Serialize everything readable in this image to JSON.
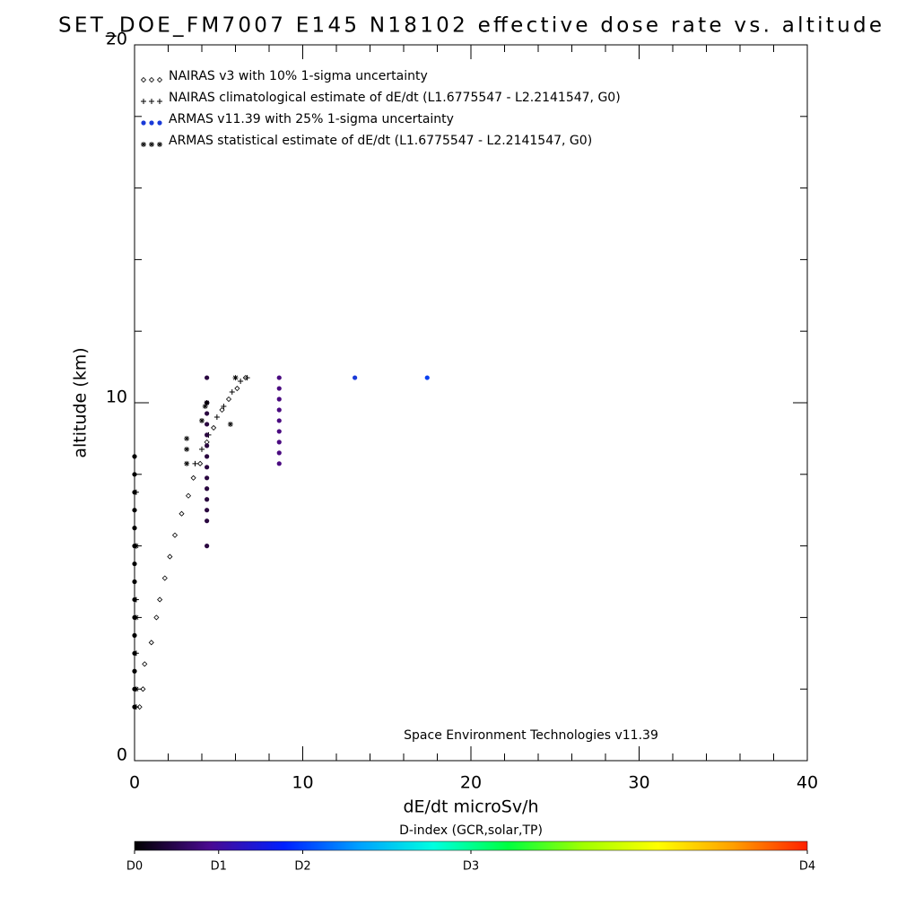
{
  "chart_data": {
    "type": "scatter",
    "title": "SET_DOE_FM7007  E145 N18102 effective dose rate vs. altitude",
    "x_label": "dE/dt microSv/h",
    "y_label": "altitude (km)",
    "annotation": "Space Environment Technologies v11.39",
    "xlim": [
      0,
      40
    ],
    "ylim": [
      0,
      20
    ],
    "xticks": [
      0,
      10,
      20,
      30,
      40
    ],
    "yticks": [
      0,
      10,
      20
    ],
    "xminorticks": [
      2,
      4,
      6,
      8,
      12,
      14,
      16,
      18,
      22,
      24,
      26,
      28,
      32,
      34,
      36,
      38
    ],
    "yminorticks": [
      2,
      4,
      6,
      8,
      12,
      14,
      16,
      18
    ],
    "series": [
      {
        "name": "NAIRAS v3 with 10% 1-sigma uncertainty",
        "marker": "diamond",
        "color": "#000000",
        "x": [
          0.3,
          0.5,
          0.6,
          1.0,
          1.3,
          1.5,
          1.8,
          2.1,
          2.4,
          2.8,
          3.2,
          3.5,
          3.9,
          4.3,
          4.7,
          5.2,
          5.6,
          6.1,
          6.6
        ],
        "values": [
          1.5,
          2.0,
          2.7,
          3.3,
          4.0,
          4.5,
          5.1,
          5.7,
          6.3,
          6.9,
          7.4,
          7.9,
          8.3,
          8.9,
          9.3,
          9.8,
          10.1,
          10.4,
          10.7
        ]
      },
      {
        "name": "NAIRAS climatological estimate of dE/dt (L1.6775547 - L2.2141547, G0)",
        "marker": "plus",
        "color": "#000000",
        "x": [
          0.1,
          0.1,
          0.1,
          0.1,
          0.1,
          3.6,
          4.0,
          4.4,
          4.9,
          5.3,
          5.8,
          6.3,
          6.7
        ],
        "values": [
          1.5,
          3.0,
          4.5,
          6.0,
          7.5,
          8.3,
          8.7,
          9.1,
          9.6,
          9.9,
          10.3,
          10.6,
          10.7
        ]
      },
      {
        "name": "ARMAS v11.39 with 25% 1-sigma uncertainty",
        "marker": "dot",
        "color": "#1a3ad8",
        "x": [
          0,
          0,
          0,
          0,
          0,
          0,
          0,
          0,
          0,
          0,
          0,
          0,
          0,
          0,
          0,
          4.3,
          4.3,
          4.3,
          4.3,
          4.3,
          4.3,
          4.3,
          4.3,
          4.3,
          4.3,
          4.3,
          4.3,
          4.3,
          4.3,
          8.6,
          8.6,
          8.6,
          8.6,
          8.6,
          8.6,
          8.6,
          8.6,
          8.6,
          13.1,
          17.4
        ],
        "values": [
          1.5,
          2.0,
          2.5,
          3.0,
          3.5,
          4.0,
          4.5,
          5.0,
          5.5,
          6.0,
          6.5,
          7.0,
          7.5,
          8.0,
          8.5,
          6.0,
          6.7,
          7.0,
          7.3,
          7.6,
          7.9,
          8.2,
          8.5,
          8.8,
          9.1,
          9.4,
          9.7,
          10.0,
          10.7,
          8.3,
          8.6,
          8.9,
          9.2,
          9.5,
          9.8,
          10.1,
          10.4,
          10.7,
          10.7,
          10.7
        ],
        "colors": [
          "#000000",
          "#000000",
          "#000000",
          "#000000",
          "#000000",
          "#000000",
          "#000000",
          "#000000",
          "#000000",
          "#000000",
          "#000000",
          "#000000",
          "#000000",
          "#000000",
          "#000000",
          "#2a0840",
          "#2a0840",
          "#2a0840",
          "#2a0840",
          "#2a0840",
          "#2a0840",
          "#2a0840",
          "#2a0840",
          "#2a0840",
          "#2a0840",
          "#2a0840",
          "#2a0840",
          "#2a0840",
          "#2a0840",
          "#4a0a80",
          "#4a0a80",
          "#4a0a80",
          "#4a0a80",
          "#4a0a80",
          "#4a0a80",
          "#4a0a80",
          "#4a0a80",
          "#4a0a80",
          "#1a3ad8",
          "#0a40f0"
        ]
      },
      {
        "name": "ARMAS statistical estimate of dE/dt (L1.6775547 - L2.2141547, G0)",
        "marker": "asterisk",
        "color": "#000000",
        "x": [
          0.1,
          0.1,
          0.1,
          3.1,
          3.1,
          3.1,
          4.0,
          4.2,
          4.3,
          5.7,
          6.0
        ],
        "values": [
          2.0,
          4.0,
          6.0,
          8.3,
          8.7,
          9.0,
          9.5,
          9.9,
          10.0,
          9.4,
          10.7
        ]
      }
    ],
    "colorbar": {
      "label": "D-index (GCR,solar,TP)",
      "lim": [
        0,
        8
      ],
      "ticks": [
        {
          "value": 0,
          "label": "D0"
        },
        {
          "value": 1,
          "label": "D1"
        },
        {
          "value": 2,
          "label": "D2"
        },
        {
          "value": 4,
          "label": "D3"
        },
        {
          "value": 8,
          "label": "D4"
        }
      ],
      "colors": [
        "#000000",
        "#4a0a90",
        "#0020ff",
        "#00a0ff",
        "#00ffe0",
        "#00ff40",
        "#a0ff00",
        "#ffff00",
        "#ffa000",
        "#ff2000"
      ]
    }
  }
}
